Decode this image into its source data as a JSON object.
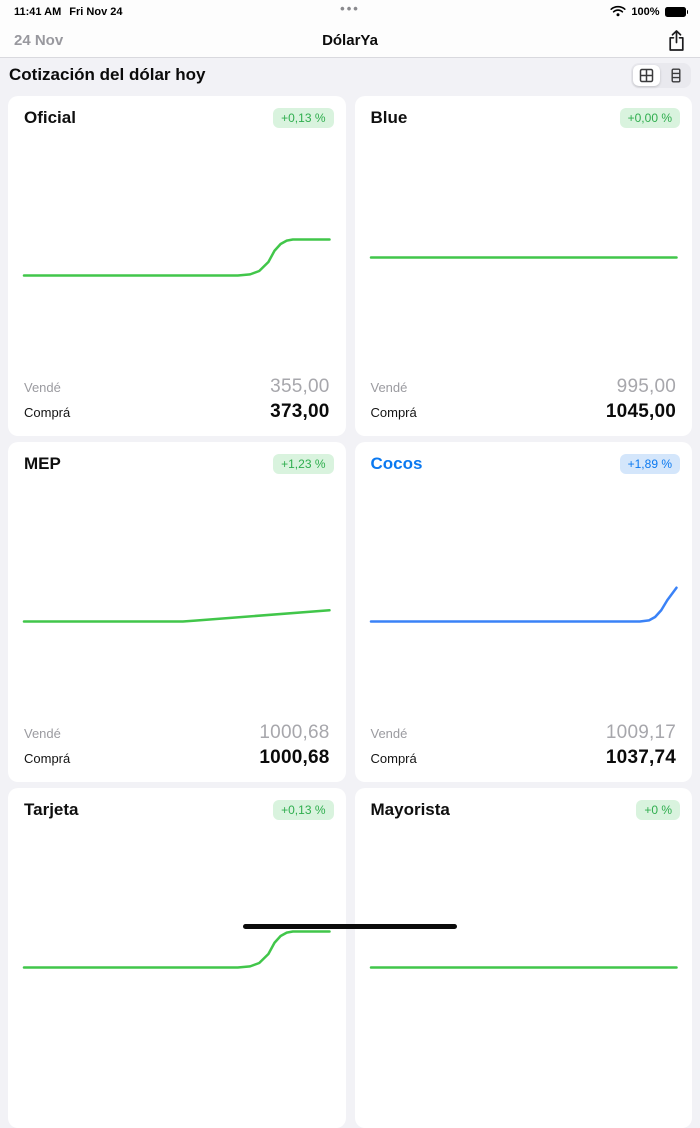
{
  "status_bar": {
    "time": "11:41 AM",
    "date": "Fri Nov 24",
    "battery_percent": "100%",
    "multitask_dots": "•••"
  },
  "nav_bar": {
    "date_label": "24 Nov",
    "title": "DólarYa"
  },
  "section_header": {
    "title": "Cotización del dólar hoy"
  },
  "colors": {
    "green": {
      "text": "#2fae4e",
      "bg": "#d9f3de",
      "line": "#41c64a"
    },
    "blue": {
      "text": "#0b79f0",
      "bg": "#d4e6fb",
      "line": "#3a82f7"
    },
    "title_default": "#0f0f0f"
  },
  "cards": [
    {
      "title": "Oficial",
      "accent": "green",
      "change": "+0,13 %",
      "sell_label": "Vendé",
      "sell_value": "355,00",
      "buy_label": "Comprá",
      "buy_value": "373,00",
      "chart": {
        "type": "line",
        "points": [
          [
            0,
            62
          ],
          [
            70,
            62
          ],
          [
            74,
            61.5
          ],
          [
            77,
            60
          ],
          [
            80,
            56
          ],
          [
            82,
            51
          ],
          [
            84,
            48
          ],
          [
            86,
            46.5
          ],
          [
            88,
            46
          ],
          [
            100,
            46
          ]
        ]
      }
    },
    {
      "title": "Blue",
      "accent": "green",
      "change": "+0,00 %",
      "sell_label": "Vendé",
      "sell_value": "995,00",
      "buy_label": "Comprá",
      "buy_value": "1045,00",
      "chart": {
        "type": "line",
        "points": [
          [
            0,
            54
          ],
          [
            100,
            54
          ]
        ]
      }
    },
    {
      "title": "MEP",
      "accent": "green",
      "change": "+1,23 %",
      "sell_label": "Vendé",
      "sell_value": "1000,68",
      "buy_label": "Comprá",
      "buy_value": "1000,68",
      "chart": {
        "type": "line",
        "points": [
          [
            0,
            62
          ],
          [
            52,
            62
          ],
          [
            56,
            61.6
          ],
          [
            100,
            57
          ]
        ]
      }
    },
    {
      "title": "Cocos",
      "accent": "blue",
      "change": "+1,89 %",
      "sell_label": "Vendé",
      "sell_value": "1009,17",
      "buy_label": "Comprá",
      "buy_value": "1037,74",
      "chart": {
        "type": "line",
        "points": [
          [
            0,
            62
          ],
          [
            88,
            62
          ],
          [
            91,
            61.5
          ],
          [
            93,
            60
          ],
          [
            95,
            57
          ],
          [
            97,
            52.5
          ],
          [
            100,
            47
          ]
        ]
      }
    },
    {
      "title": "Tarjeta",
      "accent": "green",
      "change": "+0,13 %",
      "chart": {
        "type": "line",
        "points": [
          [
            0,
            62
          ],
          [
            70,
            62
          ],
          [
            74,
            61.5
          ],
          [
            77,
            60
          ],
          [
            80,
            56
          ],
          [
            82,
            51
          ],
          [
            84,
            48
          ],
          [
            86,
            46.5
          ],
          [
            88,
            46
          ],
          [
            100,
            46
          ]
        ]
      }
    },
    {
      "title": "Mayorista",
      "accent": "green",
      "change": "+0 %",
      "chart": {
        "type": "line",
        "points": [
          [
            0,
            62
          ],
          [
            100,
            62
          ]
        ]
      }
    }
  ]
}
